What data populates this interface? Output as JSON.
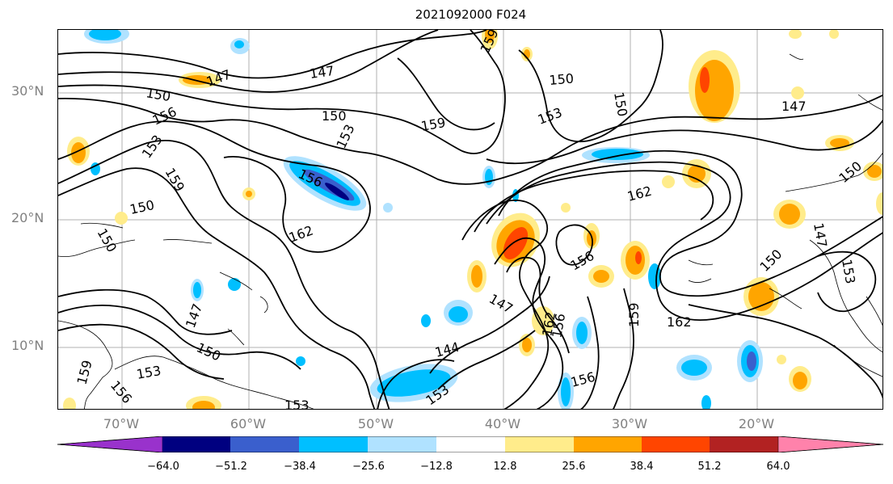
{
  "title": "2021092000 F024",
  "map": {
    "lat_labels": [
      "30°N",
      "20°N",
      "10°N"
    ],
    "lon_labels": [
      "70°W",
      "60°W",
      "50°W",
      "40°W",
      "30°W",
      "20°W"
    ],
    "contour_labels": [
      "147",
      "150",
      "147",
      "150",
      "156",
      "153",
      "159",
      "150",
      "153",
      "159",
      "150",
      "153",
      "159",
      "156",
      "150",
      "162",
      "162",
      "147",
      "156",
      "150",
      "159",
      "147",
      "162",
      "144",
      "153",
      "156",
      "150",
      "153",
      "156",
      "159",
      "162",
      "156",
      "153",
      "150",
      "147",
      "153",
      "150",
      "147"
    ],
    "colors": {
      "purple": "#9932cc",
      "navy": "#000080",
      "royal_blue": "#3a5fcd",
      "deep_sky": "#00bfff",
      "light_blue": "#b0e2ff",
      "white": "#ffffff",
      "light_yellow": "#ffec8b",
      "orange": "#ffa500",
      "orange_red": "#ff4500",
      "firebrick": "#b22222",
      "pink": "#ff82ab",
      "grid": "#b0b0b0",
      "label_gray": "#808080"
    }
  },
  "colorbar": {
    "ticks": [
      "−64.0",
      "−51.2",
      "−38.4",
      "−25.6",
      "−12.8",
      "12.8",
      "25.6",
      "38.4",
      "51.2",
      "64.0"
    ],
    "colors": [
      "#9932cc",
      "#000080",
      "#3a5fcd",
      "#00bfff",
      "#b0e2ff",
      "#ffffff",
      "#ffec8b",
      "#ffa500",
      "#ff4500",
      "#b22222",
      "#ff82ab"
    ]
  }
}
